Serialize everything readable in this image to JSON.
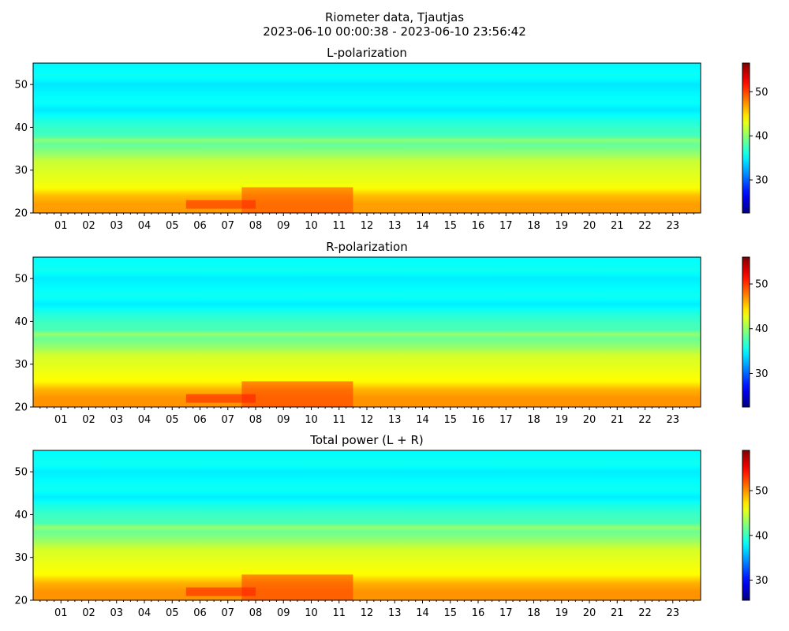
{
  "figure": {
    "title_line1": "Riometer data, Tjautjas",
    "title_line2": "2023-06-10 00:00:38 - 2023-06-10 23:56:42"
  },
  "chart_data": [
    {
      "type": "heatmap",
      "title": "L-polarization",
      "xlabel": "",
      "ylabel": "",
      "x_tick_labels": [
        "01",
        "02",
        "03",
        "04",
        "05",
        "06",
        "07",
        "08",
        "09",
        "10",
        "11",
        "12",
        "13",
        "14",
        "15",
        "16",
        "17",
        "18",
        "19",
        "20",
        "21",
        "22",
        "23"
      ],
      "x_range_hours": [
        0,
        24
      ],
      "ylim": [
        20,
        55
      ],
      "y_ticks": [
        20,
        30,
        40,
        50
      ],
      "colormap": "jet",
      "colorbar": {
        "vmin": 22.5,
        "vmax": 56.5,
        "ticks": [
          30,
          40,
          50
        ]
      },
      "value_profile_by_y": [
        {
          "y": 20,
          "value": 47
        },
        {
          "y": 22,
          "value": 47
        },
        {
          "y": 24,
          "value": 46
        },
        {
          "y": 26,
          "value": 43.5
        },
        {
          "y": 28,
          "value": 43
        },
        {
          "y": 30,
          "value": 42.5
        },
        {
          "y": 32,
          "value": 42
        },
        {
          "y": 34,
          "value": 40
        },
        {
          "y": 36,
          "value": 38.5
        },
        {
          "y": 37,
          "value": 40
        },
        {
          "y": 38,
          "value": 37.5
        },
        {
          "y": 40,
          "value": 37
        },
        {
          "y": 42,
          "value": 36
        },
        {
          "y": 44,
          "value": 34.5
        },
        {
          "y": 46,
          "value": 35.5
        },
        {
          "y": 48,
          "value": 35
        },
        {
          "y": 50,
          "value": 34.5
        },
        {
          "y": 52,
          "value": 35.5
        },
        {
          "y": 55,
          "value": 35
        }
      ],
      "enhancements": [
        {
          "hour_start": 7.5,
          "hour_end": 11.5,
          "y_start": 20,
          "y_end": 26,
          "value": 50
        },
        {
          "hour_start": 5.5,
          "hour_end": 8.0,
          "y_start": 21,
          "y_end": 23,
          "value": 51
        }
      ]
    },
    {
      "type": "heatmap",
      "title": "R-polarization",
      "xlabel": "",
      "ylabel": "",
      "x_tick_labels": [
        "01",
        "02",
        "03",
        "04",
        "05",
        "06",
        "07",
        "08",
        "09",
        "10",
        "11",
        "12",
        "13",
        "14",
        "15",
        "16",
        "17",
        "18",
        "19",
        "20",
        "21",
        "22",
        "23"
      ],
      "x_range_hours": [
        0,
        24
      ],
      "ylim": [
        20,
        55
      ],
      "y_ticks": [
        20,
        30,
        40,
        50
      ],
      "colormap": "jet",
      "colorbar": {
        "vmin": 22.5,
        "vmax": 56.0,
        "ticks": [
          30,
          40,
          50
        ]
      },
      "value_profile_by_y": [
        {
          "y": 20,
          "value": 47
        },
        {
          "y": 22,
          "value": 47
        },
        {
          "y": 24,
          "value": 46
        },
        {
          "y": 26,
          "value": 43.5
        },
        {
          "y": 28,
          "value": 43
        },
        {
          "y": 30,
          "value": 42.5
        },
        {
          "y": 32,
          "value": 42
        },
        {
          "y": 34,
          "value": 40
        },
        {
          "y": 36,
          "value": 38.5
        },
        {
          "y": 37,
          "value": 40
        },
        {
          "y": 38,
          "value": 37.5
        },
        {
          "y": 40,
          "value": 37
        },
        {
          "y": 42,
          "value": 36
        },
        {
          "y": 44,
          "value": 34.5
        },
        {
          "y": 46,
          "value": 35.5
        },
        {
          "y": 48,
          "value": 35
        },
        {
          "y": 50,
          "value": 34.5
        },
        {
          "y": 52,
          "value": 35.5
        },
        {
          "y": 55,
          "value": 35
        }
      ],
      "enhancements": [
        {
          "hour_start": 7.5,
          "hour_end": 11.5,
          "y_start": 20,
          "y_end": 26,
          "value": 50
        },
        {
          "hour_start": 5.5,
          "hour_end": 8.0,
          "y_start": 21,
          "y_end": 23,
          "value": 51
        }
      ]
    },
    {
      "type": "heatmap",
      "title": "Total power (L + R)",
      "xlabel": "",
      "ylabel": "",
      "x_tick_labels": [
        "01",
        "02",
        "03",
        "04",
        "05",
        "06",
        "07",
        "08",
        "09",
        "10",
        "11",
        "12",
        "13",
        "14",
        "15",
        "16",
        "17",
        "18",
        "19",
        "20",
        "21",
        "22",
        "23"
      ],
      "x_range_hours": [
        0,
        24
      ],
      "ylim": [
        20,
        55
      ],
      "y_ticks": [
        20,
        30,
        40,
        50
      ],
      "colormap": "jet",
      "colorbar": {
        "vmin": 25.5,
        "vmax": 59.0,
        "ticks": [
          30,
          40,
          50
        ]
      },
      "value_profile_by_y": [
        {
          "y": 20,
          "value": 50
        },
        {
          "y": 22,
          "value": 50
        },
        {
          "y": 24,
          "value": 49
        },
        {
          "y": 26,
          "value": 46.5
        },
        {
          "y": 28,
          "value": 46
        },
        {
          "y": 30,
          "value": 45.5
        },
        {
          "y": 32,
          "value": 45
        },
        {
          "y": 34,
          "value": 43
        },
        {
          "y": 36,
          "value": 41.5
        },
        {
          "y": 37,
          "value": 43
        },
        {
          "y": 38,
          "value": 40.5
        },
        {
          "y": 40,
          "value": 40
        },
        {
          "y": 42,
          "value": 39
        },
        {
          "y": 44,
          "value": 37.5
        },
        {
          "y": 46,
          "value": 38.5
        },
        {
          "y": 48,
          "value": 38
        },
        {
          "y": 50,
          "value": 37.5
        },
        {
          "y": 52,
          "value": 38.5
        },
        {
          "y": 55,
          "value": 38
        }
      ],
      "enhancements": [
        {
          "hour_start": 7.5,
          "hour_end": 11.5,
          "y_start": 20,
          "y_end": 26,
          "value": 53
        },
        {
          "hour_start": 5.5,
          "hour_end": 8.0,
          "y_start": 21,
          "y_end": 23,
          "value": 54
        }
      ]
    }
  ]
}
